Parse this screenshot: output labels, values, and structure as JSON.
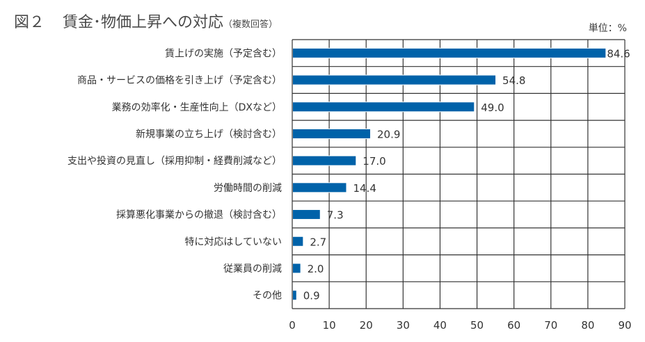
{
  "title": {
    "figure": "図２",
    "main": "賃金･物価上昇への対応",
    "note": "（複数回答）"
  },
  "unit_label": "単位：%",
  "colors": {
    "bar": "#0062a9",
    "grid": "#333333"
  },
  "chart_data": {
    "type": "bar",
    "orientation": "horizontal",
    "title": "賃金･物価上昇への対応（複数回答）",
    "xlabel": "",
    "ylabel": "",
    "unit": "%",
    "xlim": [
      0,
      90
    ],
    "xticks": [
      0,
      10,
      20,
      30,
      40,
      50,
      60,
      70,
      80,
      90
    ],
    "grid": true,
    "legend": "none",
    "categories": [
      "賃上げの実施（予定含む）",
      "商品・サービスの価格を引き上げ（予定含む）",
      "業務の効率化・生産性向上（DXなど）",
      "新規事業の立ち上げ（検討含む）",
      "支出や投資の見直し（採用抑制・経費削減など）",
      "労働時間の削減",
      "採算悪化事業からの撤退（検討含む）",
      "特に対応はしていない",
      "従業員の削減",
      "その他"
    ],
    "values": [
      84.6,
      54.8,
      49.0,
      20.9,
      17.0,
      14.4,
      7.3,
      2.7,
      2.0,
      0.9
    ],
    "value_labels": [
      "84.6",
      "54.8",
      "49.0",
      "20.9",
      "17.0",
      "14.4",
      "7.3",
      "2.7",
      "2.0",
      "0.9"
    ]
  }
}
